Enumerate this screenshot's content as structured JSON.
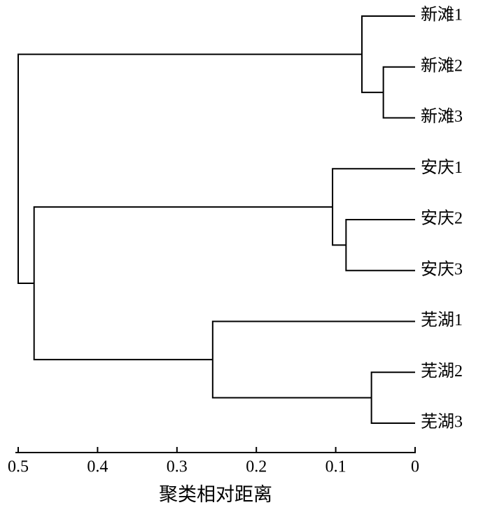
{
  "chart_data": {
    "type": "dendrogram",
    "leaves": [
      "新滩1",
      "新滩2",
      "新滩3",
      "安庆1",
      "安庆2",
      "安庆3",
      "芜湖1",
      "芜湖2",
      "芜湖3"
    ],
    "merges": [
      {
        "children": [
          1,
          2
        ],
        "height": 0.04
      },
      {
        "children": [
          0,
          9
        ],
        "height": 0.067
      },
      {
        "children": [
          4,
          5
        ],
        "height": 0.087
      },
      {
        "children": [
          3,
          11
        ],
        "height": 0.104
      },
      {
        "children": [
          7,
          8
        ],
        "height": 0.055
      },
      {
        "children": [
          6,
          13
        ],
        "height": 0.255
      },
      {
        "children": [
          12,
          14
        ],
        "height": 0.48
      },
      {
        "children": [
          10,
          15
        ],
        "height": 0.5
      }
    ],
    "xlabel": "聚类相对距离",
    "xlim": [
      0.5,
      0
    ],
    "xticks": [
      0.5,
      0.4,
      0.3,
      0.2,
      0.1,
      0
    ],
    "color": "#000000"
  }
}
